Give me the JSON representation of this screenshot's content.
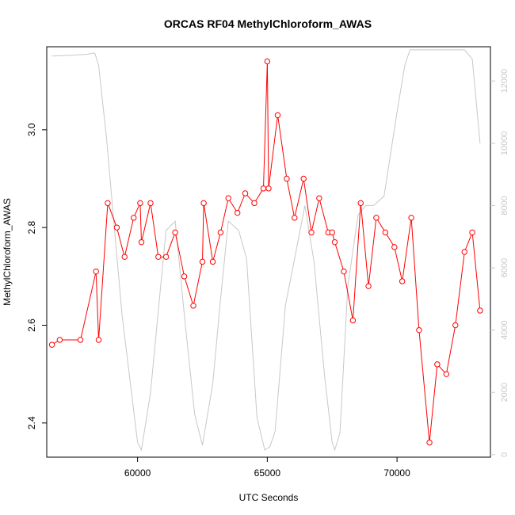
{
  "chart_data": {
    "type": "line",
    "title": "ORCAS RF04 MethylChloroform_AWAS",
    "xlabel": "UTC Seconds",
    "ylabel": "MethylChloroform_AWAS",
    "xlim": [
      56500,
      73600
    ],
    "ylim": [
      2.33,
      3.17
    ],
    "y2lim": [
      -80,
      13100
    ],
    "x_ticks": [
      60000,
      65000,
      70000
    ],
    "y_ticks": [
      2.4,
      2.6,
      2.8,
      3.0
    ],
    "y2_ticks": [
      0,
      2000,
      4000,
      6000,
      8000,
      10000,
      12000
    ],
    "grid": false,
    "series": [
      {
        "color": "#ff0000",
        "style": "line+open-circle",
        "axis": "left",
        "x": [
          56700,
          57000,
          57800,
          58400,
          58500,
          58850,
          59200,
          59500,
          59850,
          60100,
          60150,
          60500,
          60800,
          61100,
          61450,
          61800,
          62150,
          62500,
          62550,
          62900,
          63200,
          63500,
          63850,
          64150,
          64500,
          64850,
          65000,
          65050,
          65400,
          65750,
          66050,
          66400,
          66700,
          67000,
          67350,
          67500,
          67600,
          67950,
          68300,
          68600,
          68900,
          69200,
          69550,
          69900,
          70200,
          70550,
          70850,
          71250,
          71550,
          71900,
          72250,
          72600,
          72900,
          73200
        ],
        "y": [
          2.56,
          2.57,
          2.57,
          2.71,
          2.57,
          2.85,
          2.8,
          2.74,
          2.82,
          2.85,
          2.77,
          2.85,
          2.74,
          2.74,
          2.79,
          2.7,
          2.64,
          2.73,
          2.85,
          2.73,
          2.79,
          2.86,
          2.83,
          2.87,
          2.85,
          2.88,
          3.14,
          2.88,
          3.03,
          2.9,
          2.82,
          2.9,
          2.79,
          2.86,
          2.79,
          2.79,
          2.77,
          2.71,
          2.61,
          2.85,
          2.68,
          2.82,
          2.79,
          2.76,
          2.69,
          2.82,
          2.59,
          2.36,
          2.52,
          2.5,
          2.6,
          2.75,
          2.79,
          2.63
        ]
      },
      {
        "color": "#c8c8c8",
        "style": "line",
        "axis": "right",
        "x": [
          56700,
          58000,
          58350,
          58500,
          58800,
          59400,
          60000,
          60150,
          60500,
          60900,
          61100,
          61450,
          61800,
          62200,
          62500,
          62900,
          63200,
          63500,
          63900,
          64200,
          64600,
          64900,
          65100,
          65300,
          65700,
          66100,
          66450,
          66800,
          67200,
          67500,
          67600,
          67800,
          68100,
          68500,
          68800,
          69100,
          69500,
          70000,
          70300,
          70500,
          71200,
          72000,
          72600,
          72900,
          73200
        ],
        "y": [
          12800,
          12850,
          12900,
          12500,
          10200,
          4500,
          400,
          150,
          2000,
          5500,
          7200,
          7500,
          4500,
          1300,
          300,
          2300,
          5000,
          7500,
          7200,
          6300,
          1200,
          150,
          250,
          750,
          4800,
          6500,
          8000,
          6200,
          2600,
          400,
          150,
          700,
          5400,
          7700,
          8000,
          8000,
          8300,
          11000,
          12500,
          13000,
          13000,
          13000,
          13000,
          12700,
          10000
        ]
      }
    ]
  }
}
